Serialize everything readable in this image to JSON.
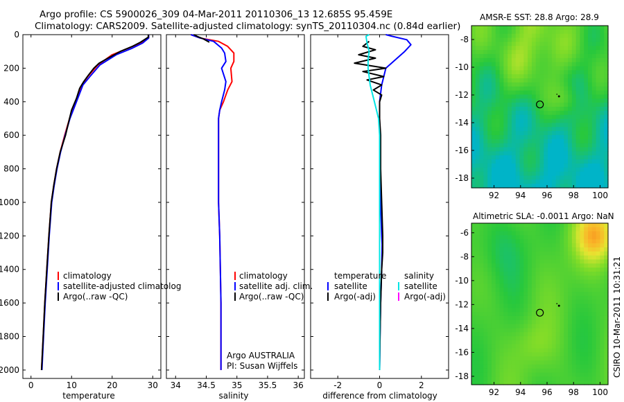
{
  "header": {
    "line1": "Argo profile: CS 5900026_309 04-Mar-2011 20110306_13 12.685S 95.459E",
    "line2": "Climatology: CARS2009. Satellite-adjusted climatology: synTS_20110304.nc (0.84d earlier)"
  },
  "colors": {
    "climatology": "#ff0000",
    "satellite": "#0000ff",
    "argo": "#000000",
    "sat_diff_salinity": "#00e5e5",
    "argo_adj_salinity": "#ff00ff"
  },
  "chart_data": [
    {
      "id": "temperature",
      "type": "line",
      "xlabel": "temperature",
      "ylabel": "",
      "xlim": [
        -2,
        32
      ],
      "ylim": [
        2050,
        0
      ],
      "y_reversed": true,
      "xticks": [
        0,
        10,
        20,
        30
      ],
      "yticks": [
        0,
        200,
        400,
        600,
        800,
        1000,
        1200,
        1400,
        1600,
        1800,
        2000
      ],
      "legend": [
        "climatology",
        "satellite-adjusted climatolog",
        "Argo(..raw -QC)"
      ],
      "series": [
        {
          "name": "climatology",
          "color": "#ff0000",
          "points": [
            [
              29,
              0
            ],
            [
              29,
              20
            ],
            [
              27,
              50
            ],
            [
              24,
              80
            ],
            [
              20,
              120
            ],
            [
              16.5,
              180
            ],
            [
              14,
              250
            ],
            [
              12.5,
              300
            ],
            [
              11,
              400
            ],
            [
              9.5,
              500
            ],
            [
              8.3,
              600
            ],
            [
              7.2,
              700
            ],
            [
              6.3,
              800
            ],
            [
              5.6,
              900
            ],
            [
              5,
              1000
            ],
            [
              4.4,
              1200
            ],
            [
              3.9,
              1400
            ],
            [
              3.4,
              1600
            ],
            [
              3,
              1800
            ],
            [
              2.6,
              2000
            ]
          ]
        },
        {
          "name": "satellite-adjusted climatolog",
          "color": "#0000ff",
          "points": [
            [
              29,
              0
            ],
            [
              29,
              20
            ],
            [
              27.5,
              50
            ],
            [
              25,
              80
            ],
            [
              21,
              120
            ],
            [
              17,
              180
            ],
            [
              14.5,
              250
            ],
            [
              12.8,
              300
            ],
            [
              11.2,
              400
            ],
            [
              9.6,
              500
            ],
            [
              8.4,
              600
            ],
            [
              7.3,
              700
            ],
            [
              6.4,
              800
            ],
            [
              5.7,
              900
            ],
            [
              5.1,
              1000
            ],
            [
              4.5,
              1200
            ],
            [
              4,
              1400
            ],
            [
              3.5,
              1600
            ],
            [
              3.1,
              1800
            ],
            [
              2.7,
              2000
            ]
          ]
        },
        {
          "name": "Argo(..raw -QC)",
          "color": "#000000",
          "points": [
            [
              28.9,
              0
            ],
            [
              28.9,
              15
            ],
            [
              27,
              45
            ],
            [
              25,
              70
            ],
            [
              22,
              100
            ],
            [
              19,
              140
            ],
            [
              16.8,
              170
            ],
            [
              15.5,
              200
            ],
            [
              14.2,
              240
            ],
            [
              13,
              280
            ],
            [
              12,
              320
            ],
            [
              11.2,
              380
            ],
            [
              10,
              450
            ],
            [
              9.3,
              520
            ],
            [
              8.5,
              600
            ],
            [
              7.2,
              700
            ],
            [
              6.3,
              800
            ],
            [
              5.6,
              900
            ],
            [
              5,
              1000
            ],
            [
              4.4,
              1200
            ],
            [
              3.9,
              1400
            ],
            [
              3.4,
              1600
            ],
            [
              3,
              1800
            ],
            [
              2.6,
              2000
            ]
          ]
        }
      ]
    },
    {
      "id": "salinity",
      "type": "line",
      "xlabel": "salinity",
      "ylabel": "",
      "xlim": [
        33.85,
        36.1
      ],
      "ylim": [
        2050,
        0
      ],
      "y_reversed": true,
      "xticks": [
        34,
        34.5,
        35,
        35.5,
        36
      ],
      "legend": [
        "climatology",
        "satellite adj. clim.",
        "Argo(..raw -QC)"
      ],
      "annotation": [
        "Argo AUSTRALIA",
        "PI: Susan Wijffels"
      ],
      "series": [
        {
          "name": "climatology",
          "color": "#ff0000",
          "points": [
            [
              34.25,
              0
            ],
            [
              34.4,
              20
            ],
            [
              34.7,
              40
            ],
            [
              34.85,
              70
            ],
            [
              34.95,
              110
            ],
            [
              34.95,
              160
            ],
            [
              34.9,
              200
            ],
            [
              34.92,
              280
            ],
            [
              34.85,
              330
            ],
            [
              34.78,
              400
            ],
            [
              34.72,
              450
            ],
            [
              34.7,
              500
            ],
            [
              34.7,
              600
            ],
            [
              34.7,
              800
            ],
            [
              34.7,
              1000
            ],
            [
              34.72,
              1200
            ],
            [
              34.73,
              1400
            ],
            [
              34.74,
              1600
            ],
            [
              34.74,
              1800
            ],
            [
              34.74,
              2000
            ]
          ]
        },
        {
          "name": "satellite adj. clim.",
          "color": "#0000ff",
          "points": [
            [
              34.25,
              0
            ],
            [
              34.4,
              20
            ],
            [
              34.62,
              40
            ],
            [
              34.75,
              80
            ],
            [
              34.8,
              110
            ],
            [
              34.82,
              160
            ],
            [
              34.75,
              200
            ],
            [
              34.82,
              280
            ],
            [
              34.8,
              330
            ],
            [
              34.75,
              400
            ],
            [
              34.72,
              450
            ],
            [
              34.7,
              500
            ],
            [
              34.7,
              600
            ],
            [
              34.7,
              800
            ],
            [
              34.7,
              1000
            ],
            [
              34.72,
              1200
            ],
            [
              34.73,
              1400
            ],
            [
              34.74,
              1600
            ],
            [
              34.74,
              1800
            ],
            [
              34.74,
              2000
            ]
          ]
        },
        {
          "name": "Argo(..raw -QC)",
          "color": "#000000",
          "points": [
            [
              34.3,
              0
            ],
            [
              34.35,
              10
            ],
            [
              34.45,
              25
            ],
            [
              34.55,
              45
            ]
          ]
        }
      ]
    },
    {
      "id": "difference",
      "type": "line",
      "xlabel": "difference from climatology",
      "ylabel": "",
      "xlim": [
        -3.3,
        3.3
      ],
      "ylim": [
        2050,
        0
      ],
      "y_reversed": true,
      "xticks": [
        -2,
        0,
        2
      ],
      "legend_left": {
        "title": "temperature",
        "items": [
          "satellite",
          "Argo(-adj)"
        ]
      },
      "legend_right": {
        "title": "salinity",
        "items": [
          "satellite",
          "Argo(-adj)"
        ]
      },
      "series": [
        {
          "name": "temperature satellite",
          "color": "#0000ff",
          "points": [
            [
              0.3,
              0
            ],
            [
              0.6,
              10
            ],
            [
              1.3,
              30
            ],
            [
              1.5,
              60
            ],
            [
              1.2,
              100
            ],
            [
              0.3,
              200
            ],
            [
              0.1,
              300
            ],
            [
              0,
              400
            ],
            [
              0,
              500
            ],
            [
              0.02,
              800
            ],
            [
              0.05,
              1000
            ],
            [
              0.1,
              1200
            ],
            [
              0.12,
              1250
            ],
            [
              0.1,
              1400
            ],
            [
              0.05,
              1600
            ],
            [
              0.02,
              1800
            ],
            [
              0,
              2000
            ]
          ]
        },
        {
          "name": "temperature Argo(-adj)",
          "color": "#000000",
          "points": [
            [
              -0.5,
              40
            ],
            [
              -0.8,
              70
            ],
            [
              -0.2,
              90
            ],
            [
              -1,
              120
            ],
            [
              -0.2,
              140
            ],
            [
              -1.2,
              170
            ],
            [
              0.3,
              200
            ],
            [
              -0.8,
              220
            ],
            [
              0.2,
              250
            ],
            [
              -0.6,
              270
            ],
            [
              0.1,
              300
            ],
            [
              -0.3,
              330
            ],
            [
              0.1,
              360
            ],
            [
              0,
              400
            ],
            [
              0,
              500
            ],
            [
              0.05,
              600
            ],
            [
              0.05,
              800
            ],
            [
              0.1,
              1000
            ],
            [
              0.15,
              1200
            ],
            [
              0.15,
              1300
            ],
            [
              0.1,
              1400
            ],
            [
              0.05,
              1600
            ],
            [
              0.02,
              1800
            ],
            [
              0,
              2000
            ]
          ]
        },
        {
          "name": "salinity satellite",
          "color": "#00e5e5",
          "points": [
            [
              -0.5,
              0
            ],
            [
              -0.65,
              10
            ],
            [
              -0.6,
              50
            ],
            [
              -0.5,
              100
            ],
            [
              -0.55,
              150
            ],
            [
              -0.55,
              200
            ],
            [
              -0.45,
              300
            ],
            [
              -0.25,
              400
            ],
            [
              -0.05,
              500
            ],
            [
              0,
              600
            ],
            [
              0,
              800
            ],
            [
              0,
              1000
            ],
            [
              0,
              1400
            ],
            [
              0,
              1800
            ],
            [
              0,
              2000
            ]
          ]
        }
      ]
    },
    {
      "id": "sst-map",
      "type": "heatmap",
      "title": "AMSR-E SST: 28.8 Argo: 28.9",
      "xlim": [
        90.3,
        100.6
      ],
      "ylim": [
        -18.7,
        -7
      ],
      "xticks": [
        92,
        94,
        96,
        98,
        100
      ],
      "yticks": [
        -8,
        -10,
        -12,
        -14,
        -16,
        -18
      ],
      "markers": [
        {
          "type": "circle",
          "lon": 95.459,
          "lat": -12.685
        },
        {
          "type": "track",
          "lon": 96.9,
          "lat": -12.1
        }
      ]
    },
    {
      "id": "sla-map",
      "type": "heatmap",
      "title": "Altimetric SLA: -0.0011 Argo: NaN",
      "xlim": [
        90.3,
        100.6
      ],
      "ylim": [
        -18.7,
        -5.2
      ],
      "xticks": [
        92,
        94,
        96,
        98,
        100
      ],
      "yticks": [
        -6,
        -8,
        -10,
        -12,
        -14,
        -16,
        -18
      ],
      "markers": [
        {
          "type": "circle",
          "lon": 95.459,
          "lat": -12.685
        },
        {
          "type": "track",
          "lon": 96.9,
          "lat": -12.1
        }
      ]
    }
  ],
  "stamp": "CSIRO 10-Mar-2011 10:31:21"
}
